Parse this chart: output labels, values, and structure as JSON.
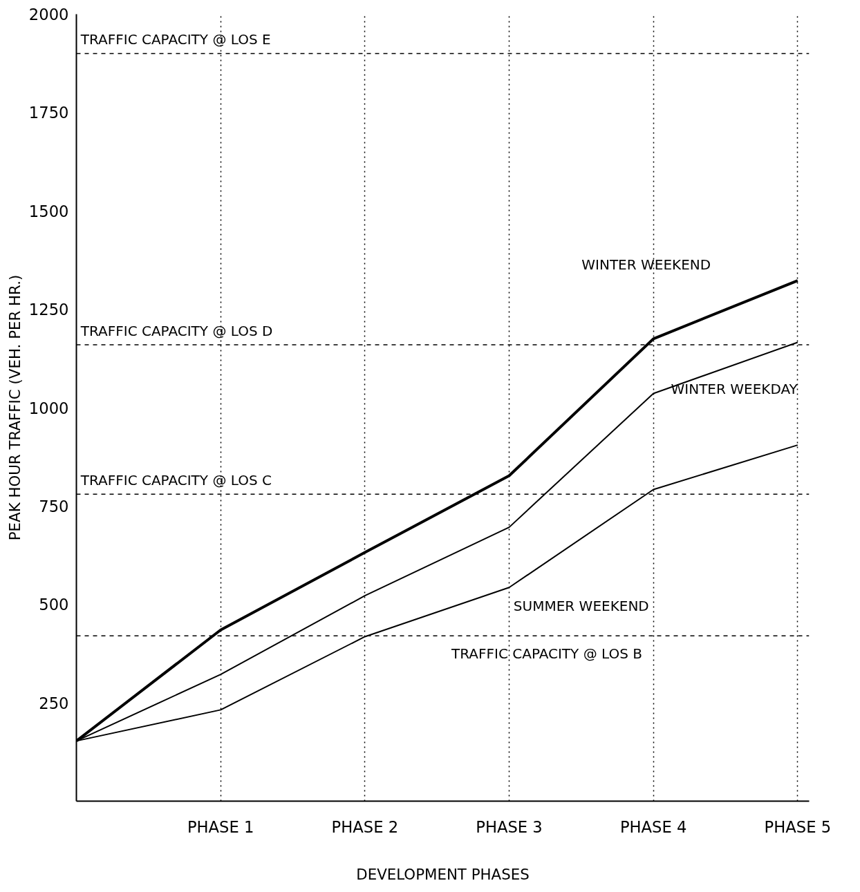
{
  "chart_data": {
    "type": "line",
    "xlabel": "DEVELOPMENT PHASES",
    "ylabel": "PEAK HOUR TRAFFIC (VEH. PER HR.)",
    "categories": [
      null,
      "PHASE 1",
      "PHASE 2",
      "PHASE 3",
      "PHASE 4",
      "PHASE 5"
    ],
    "series": [
      {
        "name": "WINTER WEEKEND",
        "color": "#000000",
        "values": [
          153,
          435,
          632,
          827,
          1175,
          1323
        ]
      },
      {
        "name": "WINTER WEEKDAY",
        "color": "#000000",
        "values": [
          153,
          322,
          522,
          696,
          1036,
          1166
        ]
      },
      {
        "name": "SUMMER WEEKEND",
        "color": "#000000",
        "values": [
          153,
          232,
          418,
          543,
          792,
          905
        ]
      }
    ],
    "ylim": [
      0,
      2000
    ],
    "yticks": [
      250,
      500,
      750,
      1000,
      1250,
      1500,
      1750,
      2000
    ],
    "ref_lines": [
      {
        "axis": "y",
        "value": 1900,
        "label": "TRAFFIC CAPACITY @ LOS E",
        "color": "#000000",
        "line_style": "dashed"
      },
      {
        "axis": "y",
        "value": 1160,
        "label": "TRAFFIC CAPACITY @ LOS D",
        "color": "#000000",
        "line_style": "dashed"
      },
      {
        "axis": "y",
        "value": 780,
        "label": "TRAFFIC CAPACITY @ LOS C",
        "color": "#000000",
        "line_style": "dashed"
      },
      {
        "axis": "y",
        "value": 420,
        "label": "TRAFFIC CAPACITY @ LOS B",
        "color": "#000000",
        "line_style": "dashed"
      }
    ],
    "grid": "x",
    "marker": "none",
    "line_style": "solid"
  }
}
